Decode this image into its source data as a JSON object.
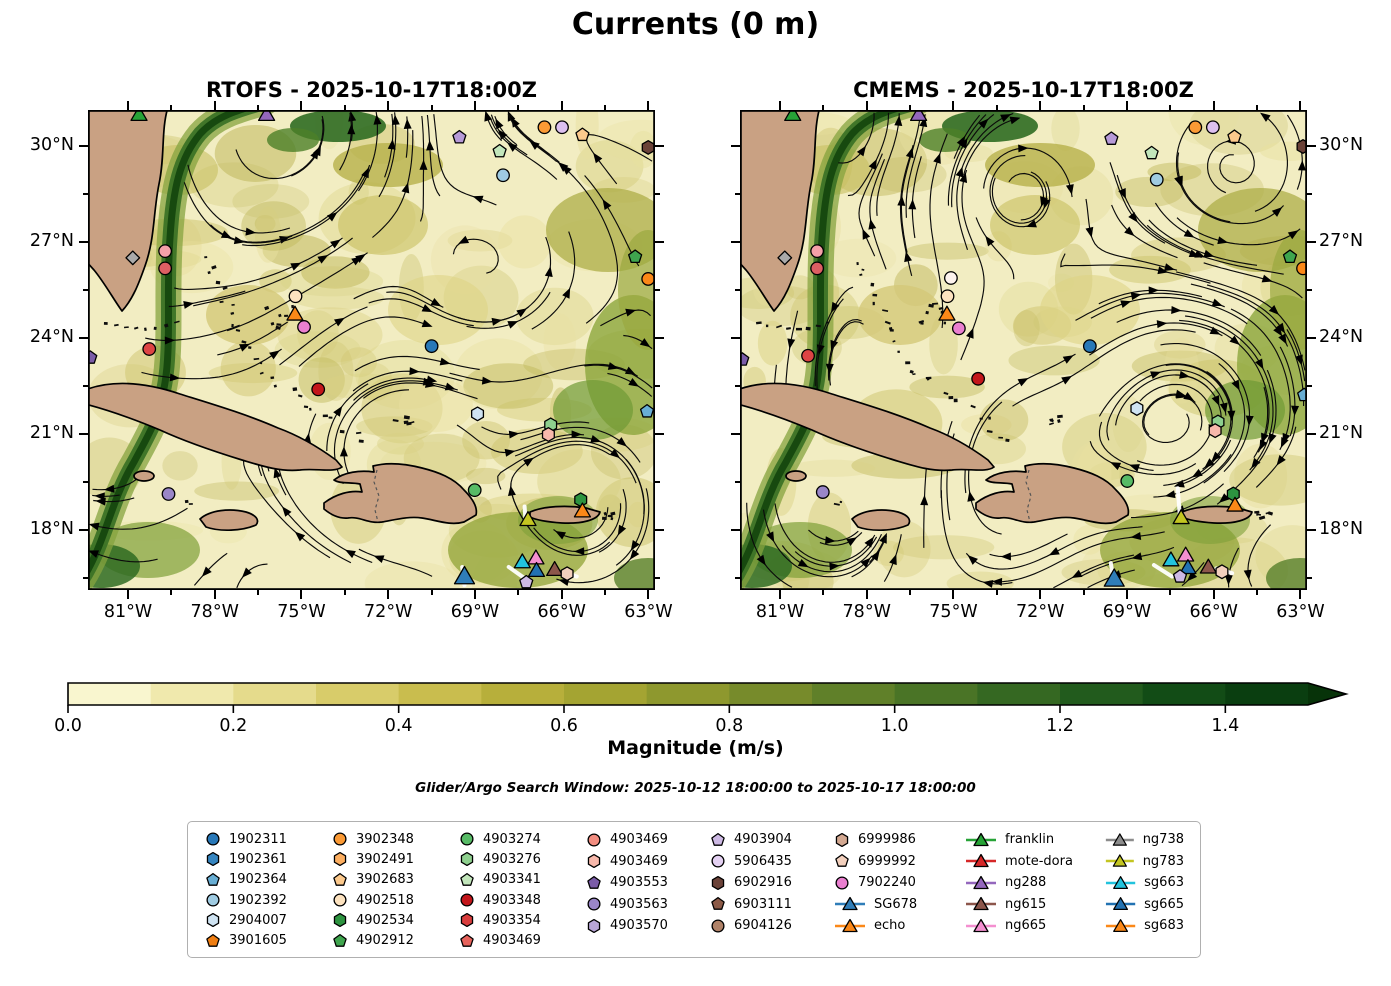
{
  "title": "Currents (0 m)",
  "subtitle": "Glider/Argo Search Window: 2025-10-12 18:00:00 to 2025-10-17 18:00:00",
  "panels": [
    {
      "title": "RTOFS - 2025-10-17T18:00Z",
      "seed": 7
    },
    {
      "title": "CMEMS - 2025-10-17T18:00Z",
      "seed": 13
    }
  ],
  "axes": {
    "lon_labels": [
      "81°W",
      "78°W",
      "75°W",
      "72°W",
      "69°W",
      "66°W",
      "63°W"
    ],
    "lon_frac": [
      0.0705,
      0.2235,
      0.3765,
      0.5295,
      0.6825,
      0.8355,
      0.9885
    ],
    "lon_minor_frac": [
      0.147,
      0.3,
      0.453,
      0.606,
      0.759,
      0.912
    ],
    "lat_labels": [
      "30°N",
      "27°N",
      "24°N",
      "21°N",
      "18°N"
    ],
    "lat_frac": [
      0.075,
      0.275,
      0.475,
      0.675,
      0.875
    ],
    "lat_minor_frac": [
      0.175,
      0.375,
      0.575,
      0.775,
      0.975
    ]
  },
  "colorbar": {
    "label": "Magnitude (m/s)",
    "tick_labels": [
      "0.0",
      "0.2",
      "0.4",
      "0.6",
      "0.8",
      "1.0",
      "1.2",
      "1.4"
    ],
    "tick_values": [
      0.0,
      0.2,
      0.4,
      0.6,
      0.8,
      1.0,
      1.2,
      1.4
    ],
    "range": [
      0.0,
      1.5
    ],
    "extend": "max",
    "segments": [
      "#f9f6cf",
      "#f0e9ad",
      "#e5db8c",
      "#d8cc6a",
      "#c9bd4e",
      "#b7af3b",
      "#a4a432",
      "#8e982e",
      "#778b2b",
      "#608029",
      "#4a7426",
      "#356822",
      "#225b1d",
      "#124c16",
      "#0a3e10"
    ],
    "arrow_color": "#073309"
  },
  "map_colors": {
    "ocean": "#f2edc2",
    "land": "#c9a183",
    "coast": "#000000",
    "current_band_dark": "#17490f",
    "streamline": "#0b0b0b"
  },
  "legend": {
    "columns": [
      [
        {
          "label": "1902311",
          "symbol": "circle",
          "color": "#2878b8"
        },
        {
          "label": "1902361",
          "symbol": "hexagon",
          "color": "#3585c0"
        },
        {
          "label": "1902364",
          "symbol": "pentagon",
          "color": "#68aed4"
        },
        {
          "label": "1902392",
          "symbol": "circle",
          "color": "#9fcbe2"
        },
        {
          "label": "2904007",
          "symbol": "hexagon",
          "color": "#cfe3f2"
        },
        {
          "label": "3901605",
          "symbol": "pentagon",
          "color": "#f07e12"
        }
      ],
      [
        {
          "label": "3902348",
          "symbol": "circle",
          "color": "#fb9a35"
        },
        {
          "label": "3902491",
          "symbol": "hexagon",
          "color": "#fcae60"
        },
        {
          "label": "3902683",
          "symbol": "pentagon",
          "color": "#fcc98c"
        },
        {
          "label": "4902518",
          "symbol": "circle",
          "color": "#fde3c0"
        },
        {
          "label": "4902534",
          "symbol": "hexagon",
          "color": "#2d9440"
        },
        {
          "label": "4902912",
          "symbol": "pentagon",
          "color": "#3fa54e"
        }
      ],
      [
        {
          "label": "4903274",
          "symbol": "circle",
          "color": "#57bb66"
        },
        {
          "label": "4903276",
          "symbol": "hexagon",
          "color": "#8ed08e"
        },
        {
          "label": "4903341",
          "symbol": "pentagon",
          "color": "#c2e6bb"
        },
        {
          "label": "4903348",
          "symbol": "circle",
          "color": "#c3161b"
        },
        {
          "label": "4903354",
          "symbol": "hexagon",
          "color": "#d93d3d"
        },
        {
          "label": "4903469",
          "symbol": "pentagon",
          "color": "#e7635c"
        }
      ],
      [
        {
          "label": "4903469",
          "symbol": "circle",
          "color": "#f28d80"
        },
        {
          "label": "4903469",
          "symbol": "hexagon",
          "color": "#f8b8ab"
        },
        {
          "label": "4903553",
          "symbol": "pentagon",
          "color": "#7b5ca8"
        },
        {
          "label": "4903563",
          "symbol": "circle",
          "color": "#9a86c8"
        },
        {
          "label": "4903570",
          "symbol": "hexagon",
          "color": "#b9a6d8"
        }
      ],
      [
        {
          "label": "4903904",
          "symbol": "pentagon",
          "color": "#cdb9e4"
        },
        {
          "label": "5906435",
          "symbol": "circle",
          "color": "#e4d1f2"
        },
        {
          "label": "6902916",
          "symbol": "hexagon",
          "color": "#6b4238"
        },
        {
          "label": "6903111",
          "symbol": "pentagon",
          "color": "#8c5a47"
        },
        {
          "label": "6904126",
          "symbol": "circle",
          "color": "#b08268"
        }
      ],
      [
        {
          "label": "6999986",
          "symbol": "hexagon",
          "color": "#d3a891"
        },
        {
          "label": "6999992",
          "symbol": "pentagon",
          "color": "#f3d0bd"
        },
        {
          "label": "7902240",
          "symbol": "circle",
          "color": "#ea7fd0"
        },
        {
          "label": "SG678",
          "symbol": "triangle",
          "color": "#2f7db8",
          "line": true
        },
        {
          "label": "echo",
          "symbol": "triangle",
          "color": "#fb8818",
          "line": true
        }
      ],
      [
        {
          "label": "franklin",
          "symbol": "triangle",
          "color": "#27a337",
          "line": true
        },
        {
          "label": "mote-dora",
          "symbol": "triangle",
          "color": "#d62728",
          "line": true
        },
        {
          "label": "ng288",
          "symbol": "triangle",
          "color": "#9467bd",
          "line": true
        },
        {
          "label": "ng615",
          "symbol": "triangle",
          "color": "#8c564b",
          "line": true
        },
        {
          "label": "ng665",
          "symbol": "triangle",
          "color": "#f48fd0",
          "line": true
        }
      ],
      [
        {
          "label": "ng738",
          "symbol": "triangle",
          "color": "#8c8c8c",
          "line": true
        },
        {
          "label": "ng783",
          "symbol": "triangle",
          "color": "#c3c521",
          "line": true
        },
        {
          "label": "sg663",
          "symbol": "triangle",
          "color": "#22c3dd",
          "line": true
        },
        {
          "label": "sg665",
          "symbol": "triangle",
          "color": "#2272b2",
          "line": true
        },
        {
          "label": "sg683",
          "symbol": "triangle",
          "color": "#fb8818",
          "line": true
        }
      ]
    ]
  },
  "markers": {
    "rtofs": [
      {
        "s": "triangle",
        "c": "#27a337",
        "x": 0.09,
        "y": 0.012
      },
      {
        "s": "triangle",
        "c": "#9467bd",
        "x": 0.315,
        "y": 0.012
      },
      {
        "s": "pentagon",
        "c": "#b79ad8",
        "x": 0.655,
        "y": 0.057
      },
      {
        "s": "circle",
        "c": "#fb9a35",
        "x": 0.805,
        "y": 0.036
      },
      {
        "s": "circle",
        "c": "#dcc0f0",
        "x": 0.836,
        "y": 0.036
      },
      {
        "s": "pentagon",
        "c": "#fcc98c",
        "x": 0.872,
        "y": 0.052
      },
      {
        "s": "hexagon",
        "c": "#6b4238",
        "x": 0.988,
        "y": 0.078
      },
      {
        "s": "pentagon",
        "c": "#c2e6bb",
        "x": 0.726,
        "y": 0.086
      },
      {
        "s": "circle",
        "c": "#9fcbe2",
        "x": 0.732,
        "y": 0.136
      },
      {
        "s": "circle",
        "c": "#f4a0a8",
        "x": 0.136,
        "y": 0.294
      },
      {
        "s": "circle",
        "c": "#dd5f63",
        "x": 0.136,
        "y": 0.33
      },
      {
        "s": "diamond",
        "c": "#aaaaaa",
        "x": 0.079,
        "y": 0.308
      },
      {
        "s": "pentagon",
        "c": "#3fa54e",
        "x": 0.965,
        "y": 0.306
      },
      {
        "s": "circle",
        "c": "#fb8818",
        "x": 0.988,
        "y": 0.352
      },
      {
        "s": "circle",
        "c": "#fde3c0",
        "x": 0.366,
        "y": 0.388
      },
      {
        "s": "triangle",
        "c": "#fb8818",
        "x": 0.365,
        "y": 0.428
      },
      {
        "s": "circle",
        "c": "#ea7fd0",
        "x": 0.381,
        "y": 0.452
      },
      {
        "s": "circle",
        "c": "#dd4444",
        "x": 0.108,
        "y": 0.498
      },
      {
        "s": "pentagon",
        "c": "#7b5ca8",
        "x": 0.004,
        "y": 0.516
      },
      {
        "s": "circle",
        "c": "#2878b8",
        "x": 0.606,
        "y": 0.492
      },
      {
        "s": "circle",
        "c": "#c3161b",
        "x": 0.406,
        "y": 0.582
      },
      {
        "s": "hexagon",
        "c": "#cfe3f2",
        "x": 0.687,
        "y": 0.633
      },
      {
        "s": "hexagon",
        "c": "#8ed08e",
        "x": 0.816,
        "y": 0.656
      },
      {
        "s": "hexagon",
        "c": "#f8b8ab",
        "x": 0.812,
        "y": 0.676
      },
      {
        "s": "pentagon",
        "c": "#68aed4",
        "x": 0.986,
        "y": 0.628
      },
      {
        "s": "circle",
        "c": "#9a86c8",
        "x": 0.142,
        "y": 0.8
      },
      {
        "s": "circle",
        "c": "#57bb66",
        "x": 0.682,
        "y": 0.792
      },
      {
        "s": "hexagon",
        "c": "#2d9440",
        "x": 0.869,
        "y": 0.812
      },
      {
        "s": "triangle",
        "c": "#fb8818",
        "x": 0.872,
        "y": 0.838
      },
      {
        "s": "triangle",
        "c": "#c3c521",
        "x": 0.776,
        "y": 0.856
      },
      {
        "s": "triangle",
        "c": "#f48fd0",
        "x": 0.79,
        "y": 0.936
      },
      {
        "s": "triangle",
        "c": "#22c3dd",
        "x": 0.766,
        "y": 0.944
      },
      {
        "s": "triangle",
        "c": "#2272b2",
        "x": 0.791,
        "y": 0.962
      },
      {
        "s": "triangle",
        "c": "#8c564b",
        "x": 0.823,
        "y": 0.96
      },
      {
        "s": "hexagon",
        "c": "#f3d0bd",
        "x": 0.845,
        "y": 0.966
      },
      {
        "s": "pentagon",
        "c": "#cdb9e4",
        "x": 0.773,
        "y": 0.984
      },
      {
        "s": "triangle",
        "c": "#2f7db8",
        "x": 0.664,
        "y": 0.975,
        "big": true
      }
    ],
    "cmems": [
      {
        "s": "triangle",
        "c": "#27a337",
        "x": 0.093,
        "y": 0.012
      },
      {
        "s": "triangle",
        "c": "#9467bd",
        "x": 0.315,
        "y": 0.012
      },
      {
        "s": "pentagon",
        "c": "#b79ad8",
        "x": 0.655,
        "y": 0.06
      },
      {
        "s": "circle",
        "c": "#fb9a35",
        "x": 0.803,
        "y": 0.036
      },
      {
        "s": "circle",
        "c": "#dcc0f0",
        "x": 0.834,
        "y": 0.036
      },
      {
        "s": "pentagon",
        "c": "#fcc98c",
        "x": 0.872,
        "y": 0.056
      },
      {
        "s": "hexagon",
        "c": "#6b4238",
        "x": 0.993,
        "y": 0.076
      },
      {
        "s": "pentagon",
        "c": "#c2e6bb",
        "x": 0.726,
        "y": 0.09
      },
      {
        "s": "circle",
        "c": "#9fcbe2",
        "x": 0.735,
        "y": 0.145
      },
      {
        "s": "circle",
        "c": "#f4a0a8",
        "x": 0.136,
        "y": 0.294
      },
      {
        "s": "circle",
        "c": "#dd5f63",
        "x": 0.136,
        "y": 0.33
      },
      {
        "s": "diamond",
        "c": "#aaaaaa",
        "x": 0.079,
        "y": 0.308
      },
      {
        "s": "pentagon",
        "c": "#3fa54e",
        "x": 0.97,
        "y": 0.306
      },
      {
        "s": "circle",
        "c": "#fb8818",
        "x": 0.993,
        "y": 0.33
      },
      {
        "s": "circle",
        "c": "#fdf3ee",
        "x": 0.372,
        "y": 0.35
      },
      {
        "s": "circle",
        "c": "#fde3c0",
        "x": 0.366,
        "y": 0.388
      },
      {
        "s": "triangle",
        "c": "#fb8818",
        "x": 0.365,
        "y": 0.428
      },
      {
        "s": "circle",
        "c": "#ea7fd0",
        "x": 0.386,
        "y": 0.455
      },
      {
        "s": "circle",
        "c": "#dd4444",
        "x": 0.12,
        "y": 0.512
      },
      {
        "s": "pentagon",
        "c": "#7b5ca8",
        "x": 0.004,
        "y": 0.52
      },
      {
        "s": "circle",
        "c": "#2878b8",
        "x": 0.617,
        "y": 0.492
      },
      {
        "s": "circle",
        "c": "#c3161b",
        "x": 0.42,
        "y": 0.56
      },
      {
        "s": "hexagon",
        "c": "#cfe3f2",
        "x": 0.7,
        "y": 0.622
      },
      {
        "s": "hexagon",
        "c": "#8ed08e",
        "x": 0.843,
        "y": 0.65
      },
      {
        "s": "hexagon",
        "c": "#f8b8ab",
        "x": 0.838,
        "y": 0.668
      },
      {
        "s": "pentagon",
        "c": "#68aed4",
        "x": 0.995,
        "y": 0.594
      },
      {
        "s": "circle",
        "c": "#9a86c8",
        "x": 0.146,
        "y": 0.796
      },
      {
        "s": "circle",
        "c": "#57bb66",
        "x": 0.683,
        "y": 0.773
      },
      {
        "s": "hexagon",
        "c": "#2d9440",
        "x": 0.87,
        "y": 0.8
      },
      {
        "s": "triangle",
        "c": "#fb8818",
        "x": 0.873,
        "y": 0.826
      },
      {
        "s": "triangle",
        "c": "#c3c521",
        "x": 0.778,
        "y": 0.852
      },
      {
        "s": "triangle",
        "c": "#f48fd0",
        "x": 0.786,
        "y": 0.93
      },
      {
        "s": "triangle",
        "c": "#22c3dd",
        "x": 0.76,
        "y": 0.94
      },
      {
        "s": "triangle",
        "c": "#2272b2",
        "x": 0.79,
        "y": 0.956
      },
      {
        "s": "triangle",
        "c": "#8c564b",
        "x": 0.826,
        "y": 0.955
      },
      {
        "s": "hexagon",
        "c": "#f3d0bd",
        "x": 0.85,
        "y": 0.962
      },
      {
        "s": "pentagon",
        "c": "#cdb9e4",
        "x": 0.776,
        "y": 0.972
      },
      {
        "s": "triangle",
        "c": "#2f7db8",
        "x": 0.66,
        "y": 0.98,
        "big": true
      }
    ]
  },
  "tracks": {
    "rtofs": [
      [
        0.77,
        0.826,
        0.772,
        0.862
      ],
      [
        0.742,
        0.952,
        0.773,
        0.978
      ],
      [
        0.66,
        0.952,
        0.664,
        0.99
      ],
      [
        0.836,
        0.962,
        0.862,
        0.972
      ]
    ],
    "cmems": [
      [
        0.772,
        0.788,
        0.776,
        0.85
      ],
      [
        0.73,
        0.948,
        0.762,
        0.972
      ],
      [
        0.654,
        0.944,
        0.66,
        0.988
      ],
      [
        0.84,
        0.955,
        0.868,
        0.965
      ]
    ]
  },
  "chart_data": {
    "type": "streamline-map",
    "title": "Currents (0 m)",
    "panels": [
      "RTOFS - 2025-10-17T18:00Z",
      "CMEMS - 2025-10-17T18:00Z"
    ],
    "lon_ticks_degW": [
      81,
      78,
      75,
      72,
      69,
      66,
      63
    ],
    "lat_ticks_degN": [
      30,
      27,
      24,
      21,
      18
    ],
    "colorbar_label": "Magnitude (m/s)",
    "colorbar_ticks": [
      0.0,
      0.2,
      0.4,
      0.6,
      0.8,
      1.0,
      1.2,
      1.4
    ],
    "colorbar_range": [
      0.0,
      1.5
    ],
    "search_window": "2025-10-12 18:00:00 to 2025-10-17 18:00:00",
    "argo_floats": [
      "1902311",
      "1902361",
      "1902364",
      "1902392",
      "2904007",
      "3901605",
      "3902348",
      "3902491",
      "3902683",
      "4902518",
      "4902534",
      "4902912",
      "4903274",
      "4903276",
      "4903341",
      "4903348",
      "4903354",
      "4903469",
      "4903469",
      "4903469",
      "4903553",
      "4903563",
      "4903570",
      "4903904",
      "5906435",
      "6902916",
      "6903111",
      "6904126",
      "6999986",
      "6999992",
      "7902240"
    ],
    "gliders": [
      "SG678",
      "echo",
      "franklin",
      "mote-dora",
      "ng288",
      "ng615",
      "ng665",
      "ng738",
      "ng783",
      "sg663",
      "sg665",
      "sg683"
    ]
  }
}
